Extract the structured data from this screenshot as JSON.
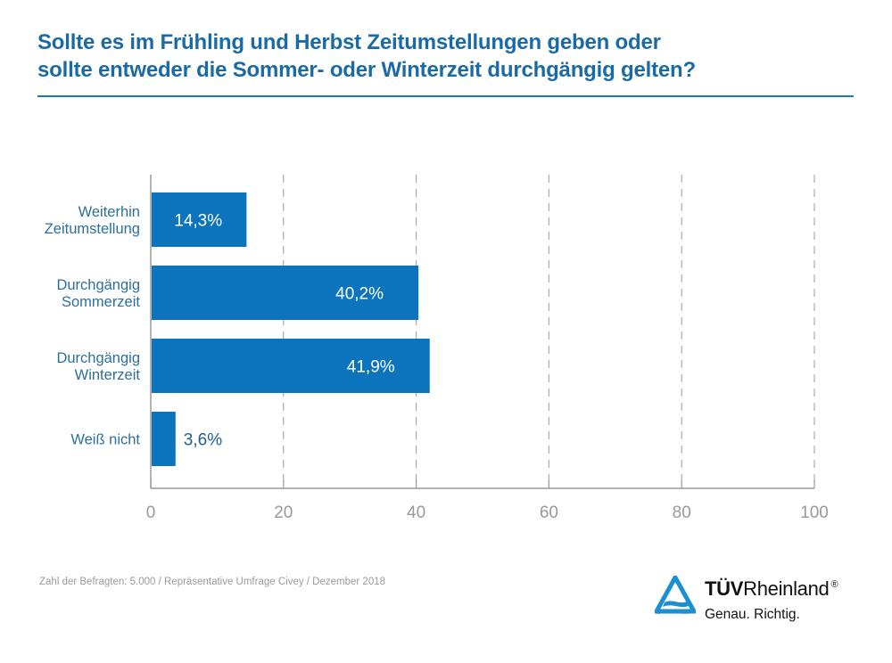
{
  "title_lines": [
    "Sollte es im Frühling und Herbst Zeitumstellungen geben oder",
    "sollte entweder die Sommer- oder Winterzeit durchgängig gelten?"
  ],
  "footnote": "Zahl der Befragten: 5.000 / Repräsentative Umfrage Civey / Dezember 2018",
  "logo": {
    "icon": "tuv-triangle-logo-icon",
    "brand_bold": "TÜV",
    "brand_regular": "Rheinland",
    "registered": "®",
    "slogan": "Genau. Richtig."
  },
  "colors": {
    "bar": "#0b74bd",
    "title": "#1a6aa6",
    "category_label": "#2d6f9c",
    "value_label_inside": "#ffffff",
    "value_label_outside": "#1f5f8f",
    "axis": "#999999",
    "grid": "#aaaaaa",
    "tick_label": "#999999"
  },
  "chart_data": {
    "type": "bar",
    "orientation": "horizontal",
    "title": "Sollte es im Frühling und Herbst Zeitumstellungen geben oder sollte entweder die Sommer- oder Winterzeit durchgängig gelten?",
    "categories": [
      [
        "Weiterhin",
        "Zeitumstellung"
      ],
      [
        "Durchgängig",
        "Sommerzeit"
      ],
      [
        "Durchgängig",
        "Winterzeit"
      ],
      [
        "Weiß nicht"
      ]
    ],
    "values": [
      14.3,
      40.2,
      41.9,
      3.6
    ],
    "value_labels": [
      "14,3%",
      "40,2%",
      "41,9%",
      "3,6%"
    ],
    "xlabel": "",
    "ylabel": "",
    "xlim": [
      0,
      100
    ],
    "xticks": [
      0,
      20,
      40,
      60,
      80,
      100
    ],
    "xtick_labels": [
      "0",
      "20",
      "40",
      "60",
      "80",
      "100"
    ],
    "grid": "vertical dashed",
    "legend": "none"
  }
}
